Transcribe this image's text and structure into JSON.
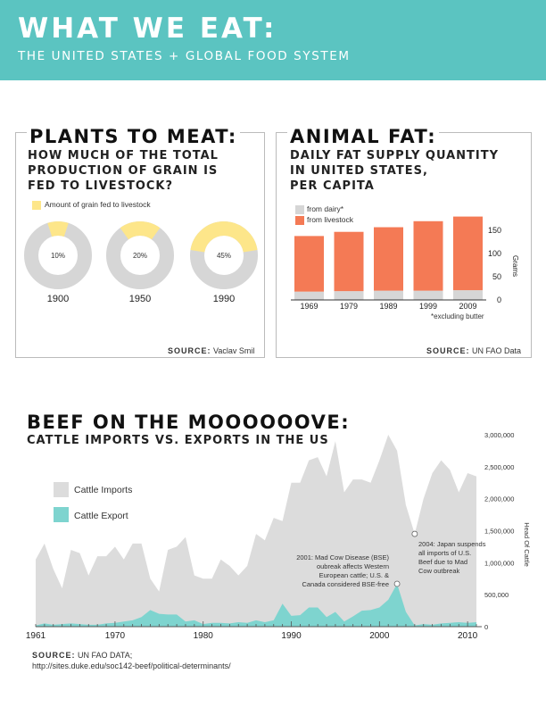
{
  "header": {
    "title": "WHAT WE EAT:",
    "subtitle": "THE UNITED STATES + GLOBAL FOOD SYSTEM"
  },
  "colors": {
    "teal": "#5bc4c1",
    "yellow": "#fde68a",
    "gray": "#d6d6d6",
    "orange": "#f47a55",
    "import_gray": "#dcdcdc",
    "export_teal": "#7ed4cf"
  },
  "plants": {
    "title": "PLANTS TO MEAT:",
    "subtitle_lines": [
      "HOW MUCH OF THE TOTAL",
      "PRODUCTION OF GRAIN IS",
      "FED TO LIVESTOCK?"
    ],
    "legend": "Amount of grain fed to livestock",
    "source_label": "SOURCE:",
    "source_value": "Vaclav Smil"
  },
  "fat": {
    "title": "ANIMAL FAT:",
    "subtitle_lines": [
      "DAILY FAT SUPPLY QUANTITY",
      "IN UNITED STATES,",
      "PER CAPITA"
    ],
    "legend_dairy": "from dairy*",
    "legend_livestock": "from livestock",
    "footnote": "*excluding butter",
    "source_label": "SOURCE:",
    "source_value": "UN FAO Data"
  },
  "beef": {
    "title": "BEEF ON THE MOOOOOOVE:",
    "subtitle": "CATTLE IMPORTS VS. EXPORTS IN THE US",
    "legend_imports": "Cattle Imports",
    "legend_exports": "Cattle Export",
    "annotation_2001": [
      "2001: Mad Cow Disease (BSE)",
      "oubreak affects Western",
      "European cattle; U.S. &",
      "Canada considered BSE-free"
    ],
    "annotation_2004": [
      "2004: Japan suspends",
      "all imports of U.S.",
      "Beef due to Mad",
      "Cow outbreak"
    ],
    "source_label": "SOURCE:",
    "source_value": "UN FAO DATA;",
    "source_url": "http://sites.duke.edu/soc142-beef/political-determinants/"
  },
  "chart_data": [
    {
      "type": "pie",
      "title": "PLANTS TO MEAT:",
      "categories": [
        "1900",
        "1950",
        "1990"
      ],
      "series": [
        {
          "name": "Amount of grain fed to livestock",
          "values": [
            10,
            20,
            45
          ]
        }
      ],
      "labels": [
        "10%",
        "20%",
        "45%"
      ]
    },
    {
      "type": "bar",
      "title": "ANIMAL FAT:",
      "categories": [
        "1969",
        "1979",
        "1989",
        "1999",
        "2009"
      ],
      "series": [
        {
          "name": "from dairy*",
          "values": [
            18,
            19,
            20,
            20,
            21
          ]
        },
        {
          "name": "from livestock",
          "values": [
            120,
            128,
            137,
            150,
            159
          ]
        }
      ],
      "ylabel": "Grams",
      "yticks": [
        "0",
        "50",
        "100",
        "150"
      ],
      "ylim": [
        0,
        185
      ],
      "footnote": "*excluding butter"
    },
    {
      "type": "area",
      "title": "BEEF ON THE MOOOOOOVE:",
      "xlabel": "",
      "ylabel": "Head Of Cattle",
      "xticks": [
        "1961",
        "1970",
        "1980",
        "1990",
        "2000",
        "2010"
      ],
      "yticks": [
        "0",
        "500,000",
        "1,000,000",
        "1,500,000",
        "2,000,000",
        "2,500,000",
        "3,000,000"
      ],
      "ylim": [
        0,
        3000000
      ],
      "x": [
        1961,
        1962,
        1963,
        1964,
        1965,
        1966,
        1967,
        1968,
        1969,
        1970,
        1971,
        1972,
        1973,
        1974,
        1975,
        1976,
        1977,
        1978,
        1979,
        1980,
        1981,
        1982,
        1983,
        1984,
        1985,
        1986,
        1987,
        1988,
        1989,
        1990,
        1991,
        1992,
        1993,
        1994,
        1995,
        1996,
        1997,
        1998,
        1999,
        2000,
        2001,
        2002,
        2003,
        2004,
        2005,
        2006,
        2007,
        2008,
        2009,
        2010,
        2011
      ],
      "series": [
        {
          "name": "Cattle Imports",
          "values": [
            1050000,
            1300000,
            900000,
            600000,
            1200000,
            1150000,
            800000,
            1100000,
            1100000,
            1250000,
            1050000,
            1300000,
            1300000,
            750000,
            550000,
            1200000,
            1250000,
            1400000,
            800000,
            750000,
            750000,
            1050000,
            950000,
            800000,
            950000,
            1450000,
            1350000,
            1700000,
            1650000,
            2250000,
            2250000,
            2600000,
            2650000,
            2350000,
            2900000,
            2100000,
            2300000,
            2300000,
            2250000,
            2600000,
            3000000,
            2750000,
            1900000,
            1450000,
            2000000,
            2400000,
            2600000,
            2450000,
            2100000,
            2400000,
            2350000
          ]
        },
        {
          "name": "Cattle Export",
          "values": [
            20000,
            50000,
            30000,
            40000,
            50000,
            40000,
            30000,
            30000,
            50000,
            60000,
            80000,
            100000,
            150000,
            260000,
            200000,
            190000,
            190000,
            80000,
            100000,
            40000,
            60000,
            60000,
            50000,
            70000,
            60000,
            100000,
            70000,
            100000,
            360000,
            170000,
            180000,
            300000,
            300000,
            150000,
            230000,
            80000,
            160000,
            250000,
            260000,
            300000,
            420000,
            670000,
            230000,
            20000,
            40000,
            30000,
            50000,
            60000,
            70000,
            60000,
            70000
          ]
        }
      ]
    }
  ]
}
